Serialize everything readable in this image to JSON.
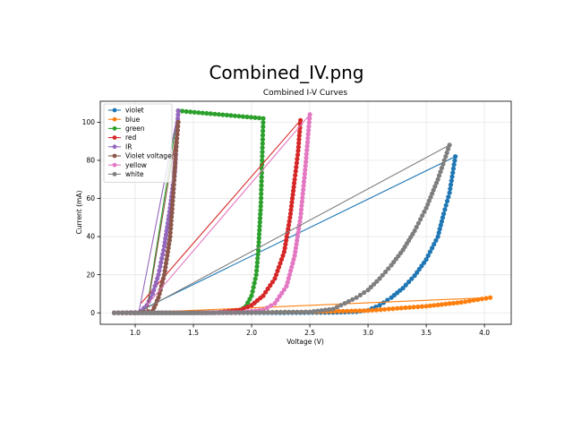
{
  "viewer": {
    "title": "Combined_IV.png"
  },
  "chart_data": {
    "type": "line",
    "title": "Combined I-V Curves",
    "xlabel": "Voltage (V)",
    "ylabel": "Current (mA)",
    "xlim": [
      0.7,
      4.23
    ],
    "ylim": [
      -6,
      111
    ],
    "xticks": [
      1.0,
      1.5,
      2.0,
      2.5,
      3.0,
      3.5,
      4.0
    ],
    "yticks": [
      0,
      20,
      40,
      60,
      80,
      100
    ],
    "grid": true,
    "legend_position": "top-left",
    "series": [
      {
        "name": "violet",
        "color": "#1f77b4",
        "points": [
          [
            0.82,
            0.0
          ],
          [
            1.0,
            0.0
          ],
          [
            2.0,
            0.0
          ],
          [
            2.7,
            0.2
          ],
          [
            2.9,
            0.6
          ],
          [
            3.0,
            1.4
          ],
          [
            3.1,
            4.0
          ],
          [
            3.2,
            8.0
          ],
          [
            3.3,
            13.0
          ],
          [
            3.4,
            19.5
          ],
          [
            3.5,
            28.0
          ],
          [
            3.6,
            40.0
          ],
          [
            3.65,
            52.0
          ],
          [
            3.7,
            63.0
          ],
          [
            3.75,
            82.0
          ],
          [
            1.0,
            0.0
          ]
        ]
      },
      {
        "name": "blue",
        "color": "#ff7f0e",
        "points": [
          [
            0.82,
            0.0
          ],
          [
            1.5,
            0.1
          ],
          [
            2.0,
            0.2
          ],
          [
            2.5,
            0.5
          ],
          [
            3.0,
            1.2
          ],
          [
            3.5,
            3.5
          ],
          [
            3.8,
            5.5
          ],
          [
            4.05,
            8.0
          ],
          [
            1.0,
            0.0
          ]
        ]
      },
      {
        "name": "green",
        "color": "#2ca02c",
        "points": [
          [
            0.82,
            0.0
          ],
          [
            1.5,
            0.0
          ],
          [
            1.8,
            0.2
          ],
          [
            1.9,
            1.0
          ],
          [
            1.95,
            3.5
          ],
          [
            2.0,
            9.0
          ],
          [
            2.04,
            20.0
          ],
          [
            2.06,
            35.0
          ],
          [
            2.08,
            58.0
          ],
          [
            2.09,
            80.0
          ],
          [
            2.1,
            102.0
          ],
          [
            1.37,
            106.0
          ],
          [
            1.1,
            2.0
          ]
        ]
      },
      {
        "name": "red",
        "color": "#d62728",
        "points": [
          [
            0.82,
            0.0
          ],
          [
            1.5,
            0.0
          ],
          [
            1.7,
            0.2
          ],
          [
            1.9,
            1.5
          ],
          [
            2.0,
            4.0
          ],
          [
            2.1,
            9.0
          ],
          [
            2.2,
            18.0
          ],
          [
            2.28,
            32.0
          ],
          [
            2.33,
            50.0
          ],
          [
            2.37,
            70.0
          ],
          [
            2.4,
            85.0
          ],
          [
            2.42,
            101.0
          ],
          [
            1.05,
            5.0
          ]
        ]
      },
      {
        "name": "IR",
        "color": "#9467bd",
        "points": [
          [
            0.82,
            0.0
          ],
          [
            1.0,
            0.2
          ],
          [
            1.05,
            1.0
          ],
          [
            1.1,
            4.0
          ],
          [
            1.15,
            10.0
          ],
          [
            1.2,
            20.0
          ],
          [
            1.25,
            35.0
          ],
          [
            1.3,
            55.0
          ],
          [
            1.34,
            75.0
          ],
          [
            1.37,
            106.0
          ],
          [
            1.03,
            0.0
          ]
        ]
      },
      {
        "name": "Violet voltage",
        "color": "#8c564b",
        "points": [
          [
            0.82,
            0.0
          ],
          [
            1.0,
            0.0
          ],
          [
            1.15,
            1.0
          ],
          [
            1.2,
            8.0
          ],
          [
            1.25,
            20.0
          ],
          [
            1.3,
            40.0
          ],
          [
            1.33,
            65.0
          ],
          [
            1.35,
            85.0
          ],
          [
            1.37,
            100.0
          ],
          [
            1.1,
            1.0
          ]
        ]
      },
      {
        "name": "yellow",
        "color": "#e377c2",
        "points": [
          [
            0.82,
            0.0
          ],
          [
            1.5,
            0.0
          ],
          [
            1.9,
            0.2
          ],
          [
            2.1,
            1.5
          ],
          [
            2.2,
            5.0
          ],
          [
            2.3,
            14.0
          ],
          [
            2.37,
            30.0
          ],
          [
            2.42,
            50.0
          ],
          [
            2.46,
            75.0
          ],
          [
            2.5,
            104.0
          ],
          [
            1.1,
            4.0
          ]
        ]
      },
      {
        "name": "white",
        "color": "#7f7f7f",
        "points": [
          [
            0.82,
            0.0
          ],
          [
            1.5,
            0.0
          ],
          [
            2.0,
            0.2
          ],
          [
            2.5,
            0.5
          ],
          [
            2.7,
            2.0
          ],
          [
            2.9,
            8.0
          ],
          [
            3.0,
            12.0
          ],
          [
            3.1,
            18.0
          ],
          [
            3.2,
            25.0
          ],
          [
            3.3,
            33.0
          ],
          [
            3.4,
            43.0
          ],
          [
            3.5,
            55.0
          ],
          [
            3.6,
            70.0
          ],
          [
            3.7,
            88.0
          ],
          [
            1.05,
            1.0
          ]
        ]
      }
    ]
  }
}
